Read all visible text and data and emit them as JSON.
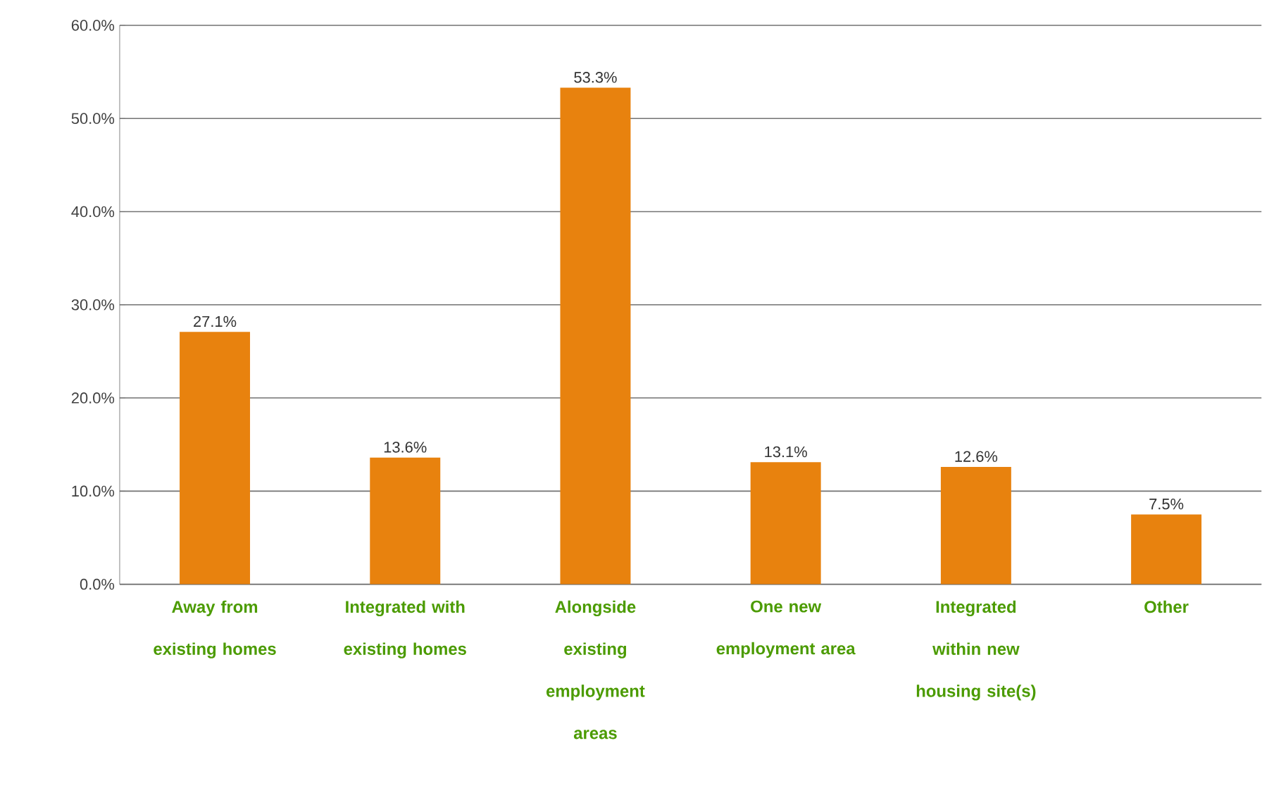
{
  "chart_data": {
    "type": "bar",
    "categories": [
      "Away from existing homes",
      "Integrated with existing homes",
      "Alongside existing employment areas",
      "One new employment area",
      "Integrated within new housing site(s)",
      "Other"
    ],
    "values": [
      27.1,
      13.6,
      53.3,
      13.1,
      12.6,
      7.5
    ],
    "value_labels": [
      "27.1%",
      "13.6%",
      "53.3%",
      "13.1%",
      "12.6%",
      "7.5%"
    ],
    "color": "#e8820e",
    "ylim": [
      0,
      60
    ],
    "yticks": [
      {
        "value": 0,
        "label": "0.0%"
      },
      {
        "value": 10,
        "label": "10.0%"
      },
      {
        "value": 20,
        "label": "20.0%"
      },
      {
        "value": 30,
        "label": "30.0%"
      },
      {
        "value": 40,
        "label": "40.0%"
      },
      {
        "value": 50,
        "label": "50.0%"
      },
      {
        "value": 60,
        "label": "60.0%"
      }
    ],
    "grid": "y"
  }
}
